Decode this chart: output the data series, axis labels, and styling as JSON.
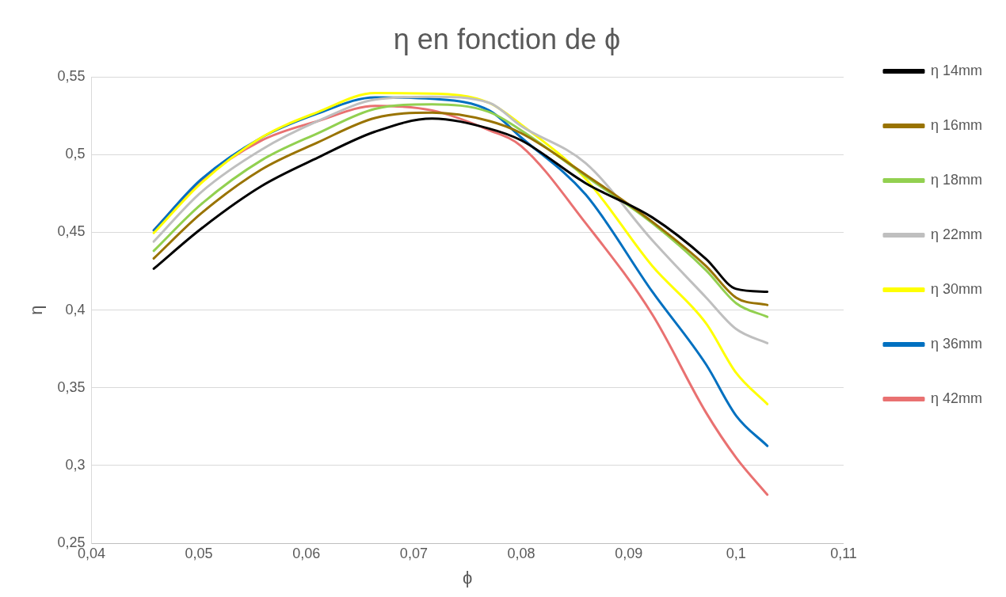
{
  "chart_data": {
    "type": "line",
    "title": "η en fonction de ϕ",
    "xlabel": "ϕ",
    "ylabel": "η",
    "x": [
      0.0458,
      0.0502,
      0.0558,
      0.0611,
      0.0664,
      0.0717,
      0.077,
      0.08,
      0.086,
      0.0922,
      0.0972,
      0.1,
      0.1029
    ],
    "series": [
      {
        "name": "η 14mm",
        "color": "#000000",
        "values": [
          0.4266,
          0.4523,
          0.4797,
          0.4982,
          0.5148,
          0.5232,
          0.5168,
          0.5092,
          0.4816,
          0.4596,
          0.4329,
          0.4136,
          0.4118
        ]
      },
      {
        "name": "η 16mm",
        "color": "#997300",
        "values": [
          0.4332,
          0.4621,
          0.4904,
          0.508,
          0.5236,
          0.527,
          0.5217,
          0.5138,
          0.4871,
          0.4568,
          0.4283,
          0.408,
          0.4033
        ]
      },
      {
        "name": "η 18mm",
        "color": "#92d050",
        "values": [
          0.4381,
          0.468,
          0.4963,
          0.5139,
          0.5295,
          0.5324,
          0.5275,
          0.5156,
          0.4862,
          0.4559,
          0.4256,
          0.4044,
          0.3956
        ]
      },
      {
        "name": "η 22mm",
        "color": "#bfbfbf",
        "values": [
          0.4441,
          0.4758,
          0.5031,
          0.5217,
          0.5354,
          0.5373,
          0.5334,
          0.5184,
          0.4945,
          0.4449,
          0.4081,
          0.3878,
          0.3787
        ]
      },
      {
        "name": "η 30mm",
        "color": "#ffff00",
        "values": [
          0.4496,
          0.4816,
          0.511,
          0.5275,
          0.5396,
          0.5393,
          0.5334,
          0.5193,
          0.4844,
          0.4283,
          0.3915,
          0.3596,
          0.3395
        ]
      },
      {
        "name": "η 36mm",
        "color": "#0070c0",
        "values": [
          0.4513,
          0.484,
          0.5109,
          0.5266,
          0.5369,
          0.5359,
          0.5285,
          0.511,
          0.4743,
          0.4118,
          0.365,
          0.332,
          0.3126
        ]
      },
      {
        "name": "η 42mm",
        "color": "#e97171",
        "values": [
          0.4513,
          0.483,
          0.509,
          0.5217,
          0.5314,
          0.5285,
          0.5158,
          0.5055,
          0.4559,
          0.3971,
          0.334,
          0.305,
          0.2812
        ]
      }
    ],
    "xlim": [
      0.04,
      0.11
    ],
    "xticks": [
      {
        "value": 0.04,
        "label": "0,04"
      },
      {
        "value": 0.05,
        "label": "0,05"
      },
      {
        "value": 0.06,
        "label": "0,06"
      },
      {
        "value": 0.07,
        "label": "0,07"
      },
      {
        "value": 0.08,
        "label": "0,08"
      },
      {
        "value": 0.09,
        "label": "0,09"
      },
      {
        "value": 0.1,
        "label": "0,1"
      },
      {
        "value": 0.11,
        "label": "0,11"
      }
    ],
    "ylim": [
      0.25,
      0.55
    ],
    "yticks": [
      {
        "value": 0.25,
        "label": "0,25"
      },
      {
        "value": 0.3,
        "label": "0,3"
      },
      {
        "value": 0.35,
        "label": "0,35"
      },
      {
        "value": 0.4,
        "label": "0,4"
      },
      {
        "value": 0.45,
        "label": "0,45"
      },
      {
        "value": 0.5,
        "label": "0,5"
      },
      {
        "value": 0.55,
        "label": "0,55"
      }
    ],
    "grid": "y",
    "legend": "right",
    "marker": "none",
    "line_style": "solid"
  }
}
